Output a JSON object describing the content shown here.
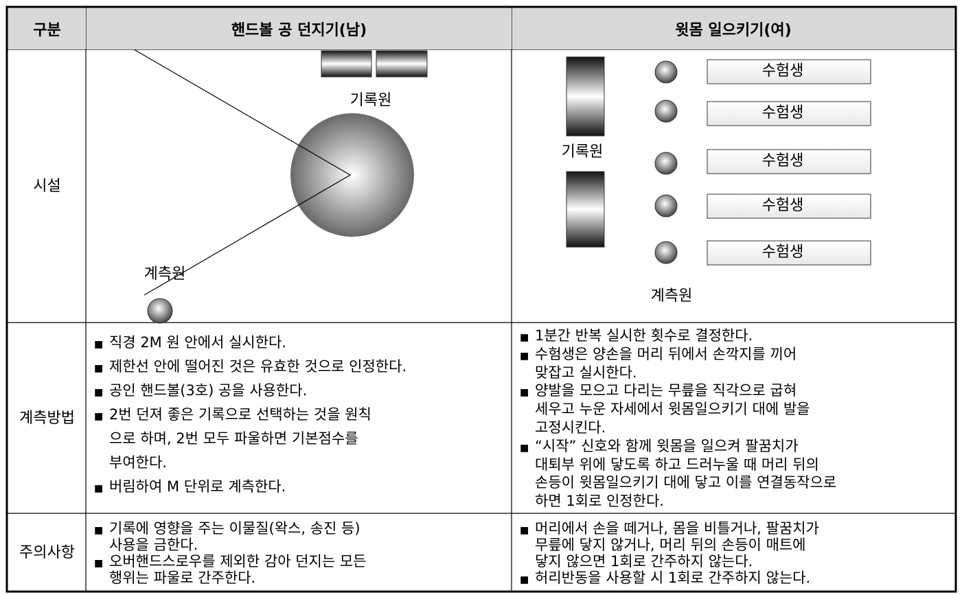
{
  "table": {
    "header": [
      "구분",
      "핸드볼 공 던지기(남)",
      "윗몸 일으키기(여)"
    ],
    "facility": {
      "label": [
        "시설"
      ],
      "handball": {
        "recorder": "기록원",
        "measurer": "계측원"
      },
      "situp": {
        "recorder": "기록원",
        "measurer": "계측원",
        "examinees": [
          "수험생",
          "수험생",
          "수험생",
          "수험생",
          "수험생"
        ]
      }
    },
    "method": {
      "label": [
        "계측",
        "방법"
      ],
      "handball": [
        [
          "직경 2M 원 안에서 실시한다."
        ],
        [
          "제한선 안에 떨어진 것은 유효한 것으로 인정한다."
        ],
        [
          "공인 핸드볼(3호) 공을 사용한다."
        ],
        [
          "2번 던져 좋은 기록으로 선택하는 것을 원칙",
          "으로 하며, 2번 모두 파울하면 기본점수를",
          "부여한다."
        ],
        [
          "버림하여 M 단위로 계측한다."
        ]
      ],
      "situp": [
        [
          "1분간 반복 실시한 횟수로 결정한다."
        ],
        [
          "수험생은 양손을 머리 뒤에서 손깍지를 끼어",
          "맞잡고 실시한다."
        ],
        [
          "양발을 모으고 다리는 무릎을 직각으로 굽혀",
          "세우고 누운 자세에서 윗몸일으키기 대에 발을",
          "고정시킨다."
        ],
        [
          "“시작” 신호와 함께 윗몸을 일으켜 팔꿈치가",
          "대퇴부 위에 닿도록 하고 드러누울 때 머리 뒤의",
          "손등이 윗몸일으키기 대에 닿고 이를 연결동작으로",
          "하면 1회로 인정한다."
        ]
      ]
    },
    "caution": {
      "label": [
        "주의",
        "사항"
      ],
      "handball": [
        [
          "기록에 영향을 주는 이물질(왁스, 송진 등)",
          "사용을 금한다."
        ],
        [
          "오버핸드스로우를 제외한 감아 던지는 모든",
          "행위는 파울로 간주한다."
        ]
      ],
      "situp": [
        [
          "머리에서 손을 떼거나, 몸을 비틀거나, 팔꿈치가",
          "무릎에 닿지 않거나, 머리 뒤의 손등이 매트에",
          "닿지 않으면 1회로 간주하지 않는다."
        ],
        [
          "허리반동을 사용할 시 1회로 간주하지 않는다."
        ]
      ]
    }
  }
}
